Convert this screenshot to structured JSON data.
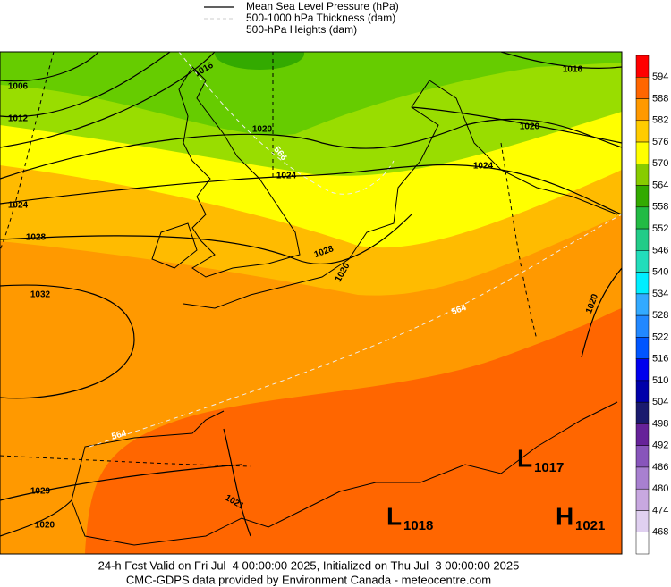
{
  "legend": [
    "Mean Sea Level Pressure (hPa)",
    "500-1000 hPa Thickness (dam)",
    "500-hPa Heights (dam)"
  ],
  "isobar_labels": [
    "1016",
    "1006",
    "1012",
    "1020",
    "1024",
    "1024",
    "1028",
    "1028",
    "1032",
    "1029",
    "1020",
    "1021",
    "1016",
    "1020",
    "1024",
    "1020",
    "1020"
  ],
  "thickness_labels": [
    "566",
    "564",
    "564"
  ],
  "centers": [
    {
      "letter": "L",
      "value": "1017"
    },
    {
      "letter": "L",
      "value": "1018"
    },
    {
      "letter": "H",
      "value": "1021"
    }
  ],
  "colorbar": {
    "labels": [
      "594",
      "588",
      "582",
      "576",
      "570",
      "564",
      "558",
      "552",
      "546",
      "540",
      "534",
      "528",
      "522",
      "516",
      "510",
      "504",
      "498",
      "492",
      "486",
      "480",
      "474",
      "468"
    ],
    "colors": [
      "#ff0000",
      "#ff6600",
      "#ff9900",
      "#ffcc00",
      "#ffff00",
      "#88cc00",
      "#33aa00",
      "#22bb44",
      "#22cc88",
      "#22ddbb",
      "#00eeff",
      "#33aaff",
      "#2288ff",
      "#0055ff",
      "#0000ee",
      "#0000aa",
      "#1a1a6e",
      "#662299",
      "#8855bb",
      "#a880d0",
      "#c8a8e0",
      "#e0d0f0",
      "#ffffff"
    ]
  },
  "footer": [
    "24-h Fcst Valid on Fri Jul  4 00:00:00 2025, Initialized on Thu Jul  3 00:00:00 2025",
    "CMC-GDPS data provided by Environment Canada - meteocentre.com"
  ]
}
